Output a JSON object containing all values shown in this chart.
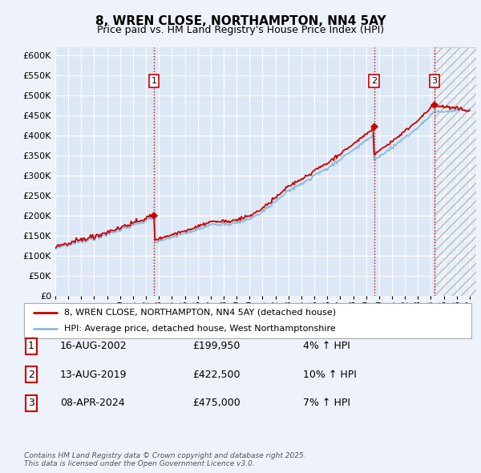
{
  "title_line1": "8, WREN CLOSE, NORTHAMPTON, NN4 5AY",
  "title_line2": "Price paid vs. HM Land Registry's House Price Index (HPI)",
  "background_color": "#eef2fa",
  "plot_background": "#dce8f5",
  "grid_color": "#ffffff",
  "yticks": [
    0,
    50000,
    100000,
    150000,
    200000,
    250000,
    300000,
    350000,
    400000,
    450000,
    500000,
    550000,
    600000
  ],
  "xlim_start": 1995.0,
  "xlim_end": 2027.5,
  "ylim_min": 0,
  "ylim_max": 620000,
  "sale_dates": [
    2002.62,
    2019.62,
    2024.27
  ],
  "sale_prices": [
    199950,
    422500,
    475000
  ],
  "sale_labels": [
    "1",
    "2",
    "3"
  ],
  "vline_color": "#cc0000",
  "vline_style": ":",
  "red_line_color": "#cc0000",
  "blue_line_color": "#88bbdd",
  "sale_marker_color": "#cc0000",
  "legend_items": [
    "8, WREN CLOSE, NORTHAMPTON, NN4 5AY (detached house)",
    "HPI: Average price, detached house, West Northamptonshire"
  ],
  "table_rows": [
    {
      "num": "1",
      "date": "16-AUG-2002",
      "price": "£199,950",
      "hpi": "4% ↑ HPI"
    },
    {
      "num": "2",
      "date": "13-AUG-2019",
      "price": "£422,500",
      "hpi": "10% ↑ HPI"
    },
    {
      "num": "3",
      "date": "08-APR-2024",
      "price": "£475,000",
      "hpi": "7% ↑ HPI"
    }
  ],
  "footnote": "Contains HM Land Registry data © Crown copyright and database right 2025.\nThis data is licensed under the Open Government Licence v3.0.",
  "hatch_start": 2024.27,
  "hatch_color": "#aaaaaa",
  "hatch_alpha": 0.3
}
